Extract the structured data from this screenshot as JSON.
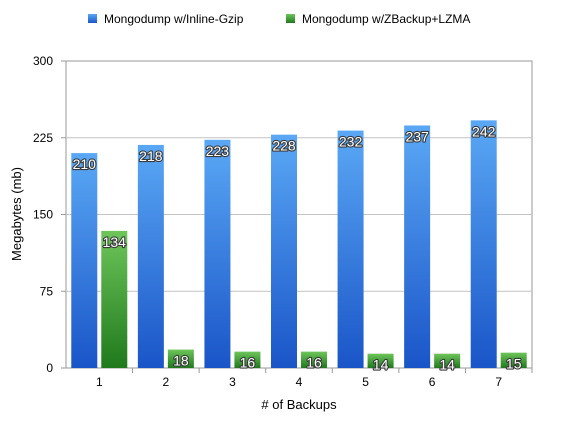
{
  "chart_data": {
    "type": "bar",
    "categories": [
      "1",
      "2",
      "3",
      "4",
      "5",
      "6",
      "7"
    ],
    "series": [
      {
        "name": "Mongodump w/Inline-Gzip",
        "values": [
          210,
          218,
          223,
          228,
          232,
          237,
          242
        ],
        "color": "#2f7fe0"
      },
      {
        "name": "Mongodump w/ZBackup+LZMA",
        "values": [
          134,
          18,
          16,
          16,
          14,
          14,
          15
        ],
        "color": "#3ea33a"
      }
    ],
    "title": "",
    "xlabel": "# of Backups",
    "ylabel": "Megabytes (mb)",
    "ylim": [
      0,
      300
    ],
    "yticks": [
      "0",
      "75",
      "150",
      "225",
      "300"
    ],
    "grid": true,
    "legend": "top-center",
    "data_labels": true
  }
}
